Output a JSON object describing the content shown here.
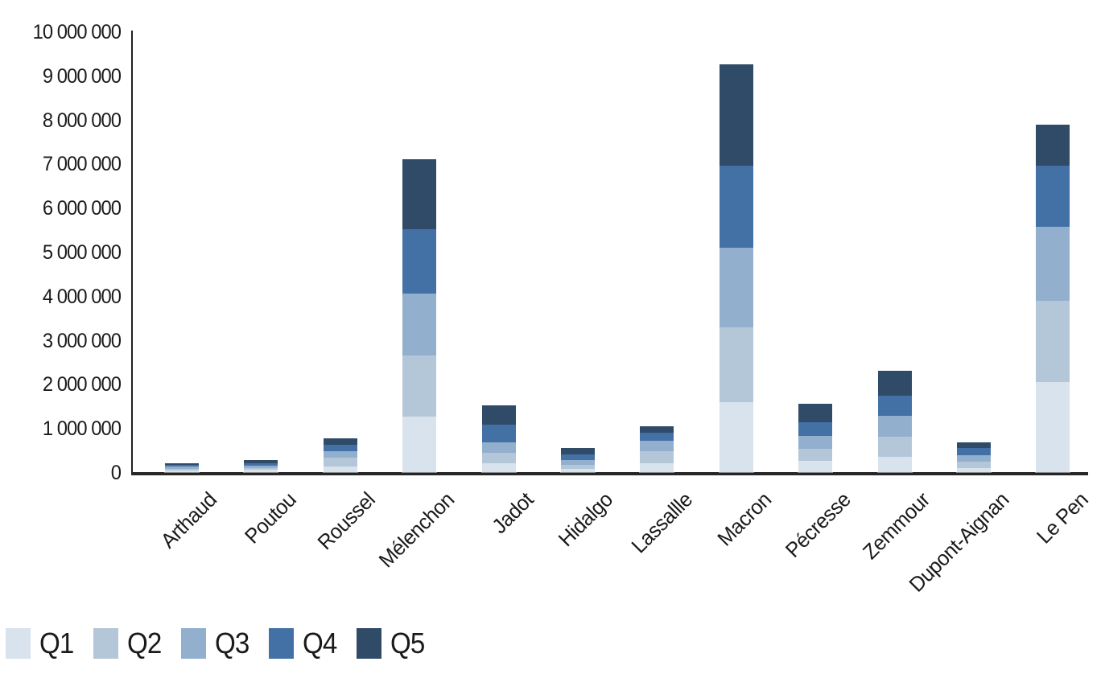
{
  "chart_data": {
    "type": "bar",
    "stacked": true,
    "title": "",
    "xlabel": "",
    "ylabel": "",
    "grid": false,
    "categories": [
      "Arthaud",
      "Poutou",
      "Roussel",
      "Mélenchon",
      "Jadot",
      "Hidalgo",
      "Lassallle",
      "Macron",
      "Pécresse",
      "Zemmour",
      "Dupont-Aignan",
      "Le Pen"
    ],
    "series": [
      {
        "name": "Q1",
        "color": "#d9e3ed",
        "values": [
          40000,
          50000,
          130000,
          1260000,
          200000,
          70000,
          210000,
          1590000,
          250000,
          350000,
          100000,
          2050000
        ]
      },
      {
        "name": "Q2",
        "color": "#b4c7d8",
        "values": [
          40000,
          50000,
          195000,
          1385000,
          230000,
          90000,
          260000,
          1690000,
          280000,
          450000,
          140000,
          1830000
        ]
      },
      {
        "name": "Q3",
        "color": "#92afce",
        "values": [
          40000,
          55000,
          150000,
          1410000,
          250000,
          110000,
          240000,
          1820000,
          300000,
          470000,
          150000,
          1680000
        ]
      },
      {
        "name": "Q4",
        "color": "#4371a5",
        "values": [
          45000,
          55000,
          140000,
          1450000,
          390000,
          140000,
          190000,
          1850000,
          310000,
          470000,
          150000,
          1390000
        ]
      },
      {
        "name": "Q5",
        "color": "#2f4b68",
        "values": [
          45000,
          60000,
          145000,
          1590000,
          440000,
          130000,
          150000,
          2300000,
          410000,
          560000,
          135000,
          930000
        ]
      }
    ],
    "totals": [
      210000,
      270000,
      760000,
      7095000,
      1510000,
      540000,
      1050000,
      9250000,
      1550000,
      2300000,
      675000,
      7880000
    ],
    "y_axis": {
      "min": 0,
      "max": 10000000,
      "tick_step": 1000000,
      "tick_labels": [
        "0",
        "1 000 000",
        "2 000 000",
        "3 000 000",
        "4 000 000",
        "5 000 000",
        "6 000 000",
        "7 000 000",
        "8 000 000",
        "9 000 000",
        "10 000 000"
      ]
    },
    "x_axis": {
      "label_rotation_deg": -45
    },
    "legend": {
      "position": "bottom-left",
      "items": [
        "Q1",
        "Q2",
        "Q3",
        "Q4",
        "Q5"
      ]
    },
    "axis_color": "#1f1f1f"
  }
}
